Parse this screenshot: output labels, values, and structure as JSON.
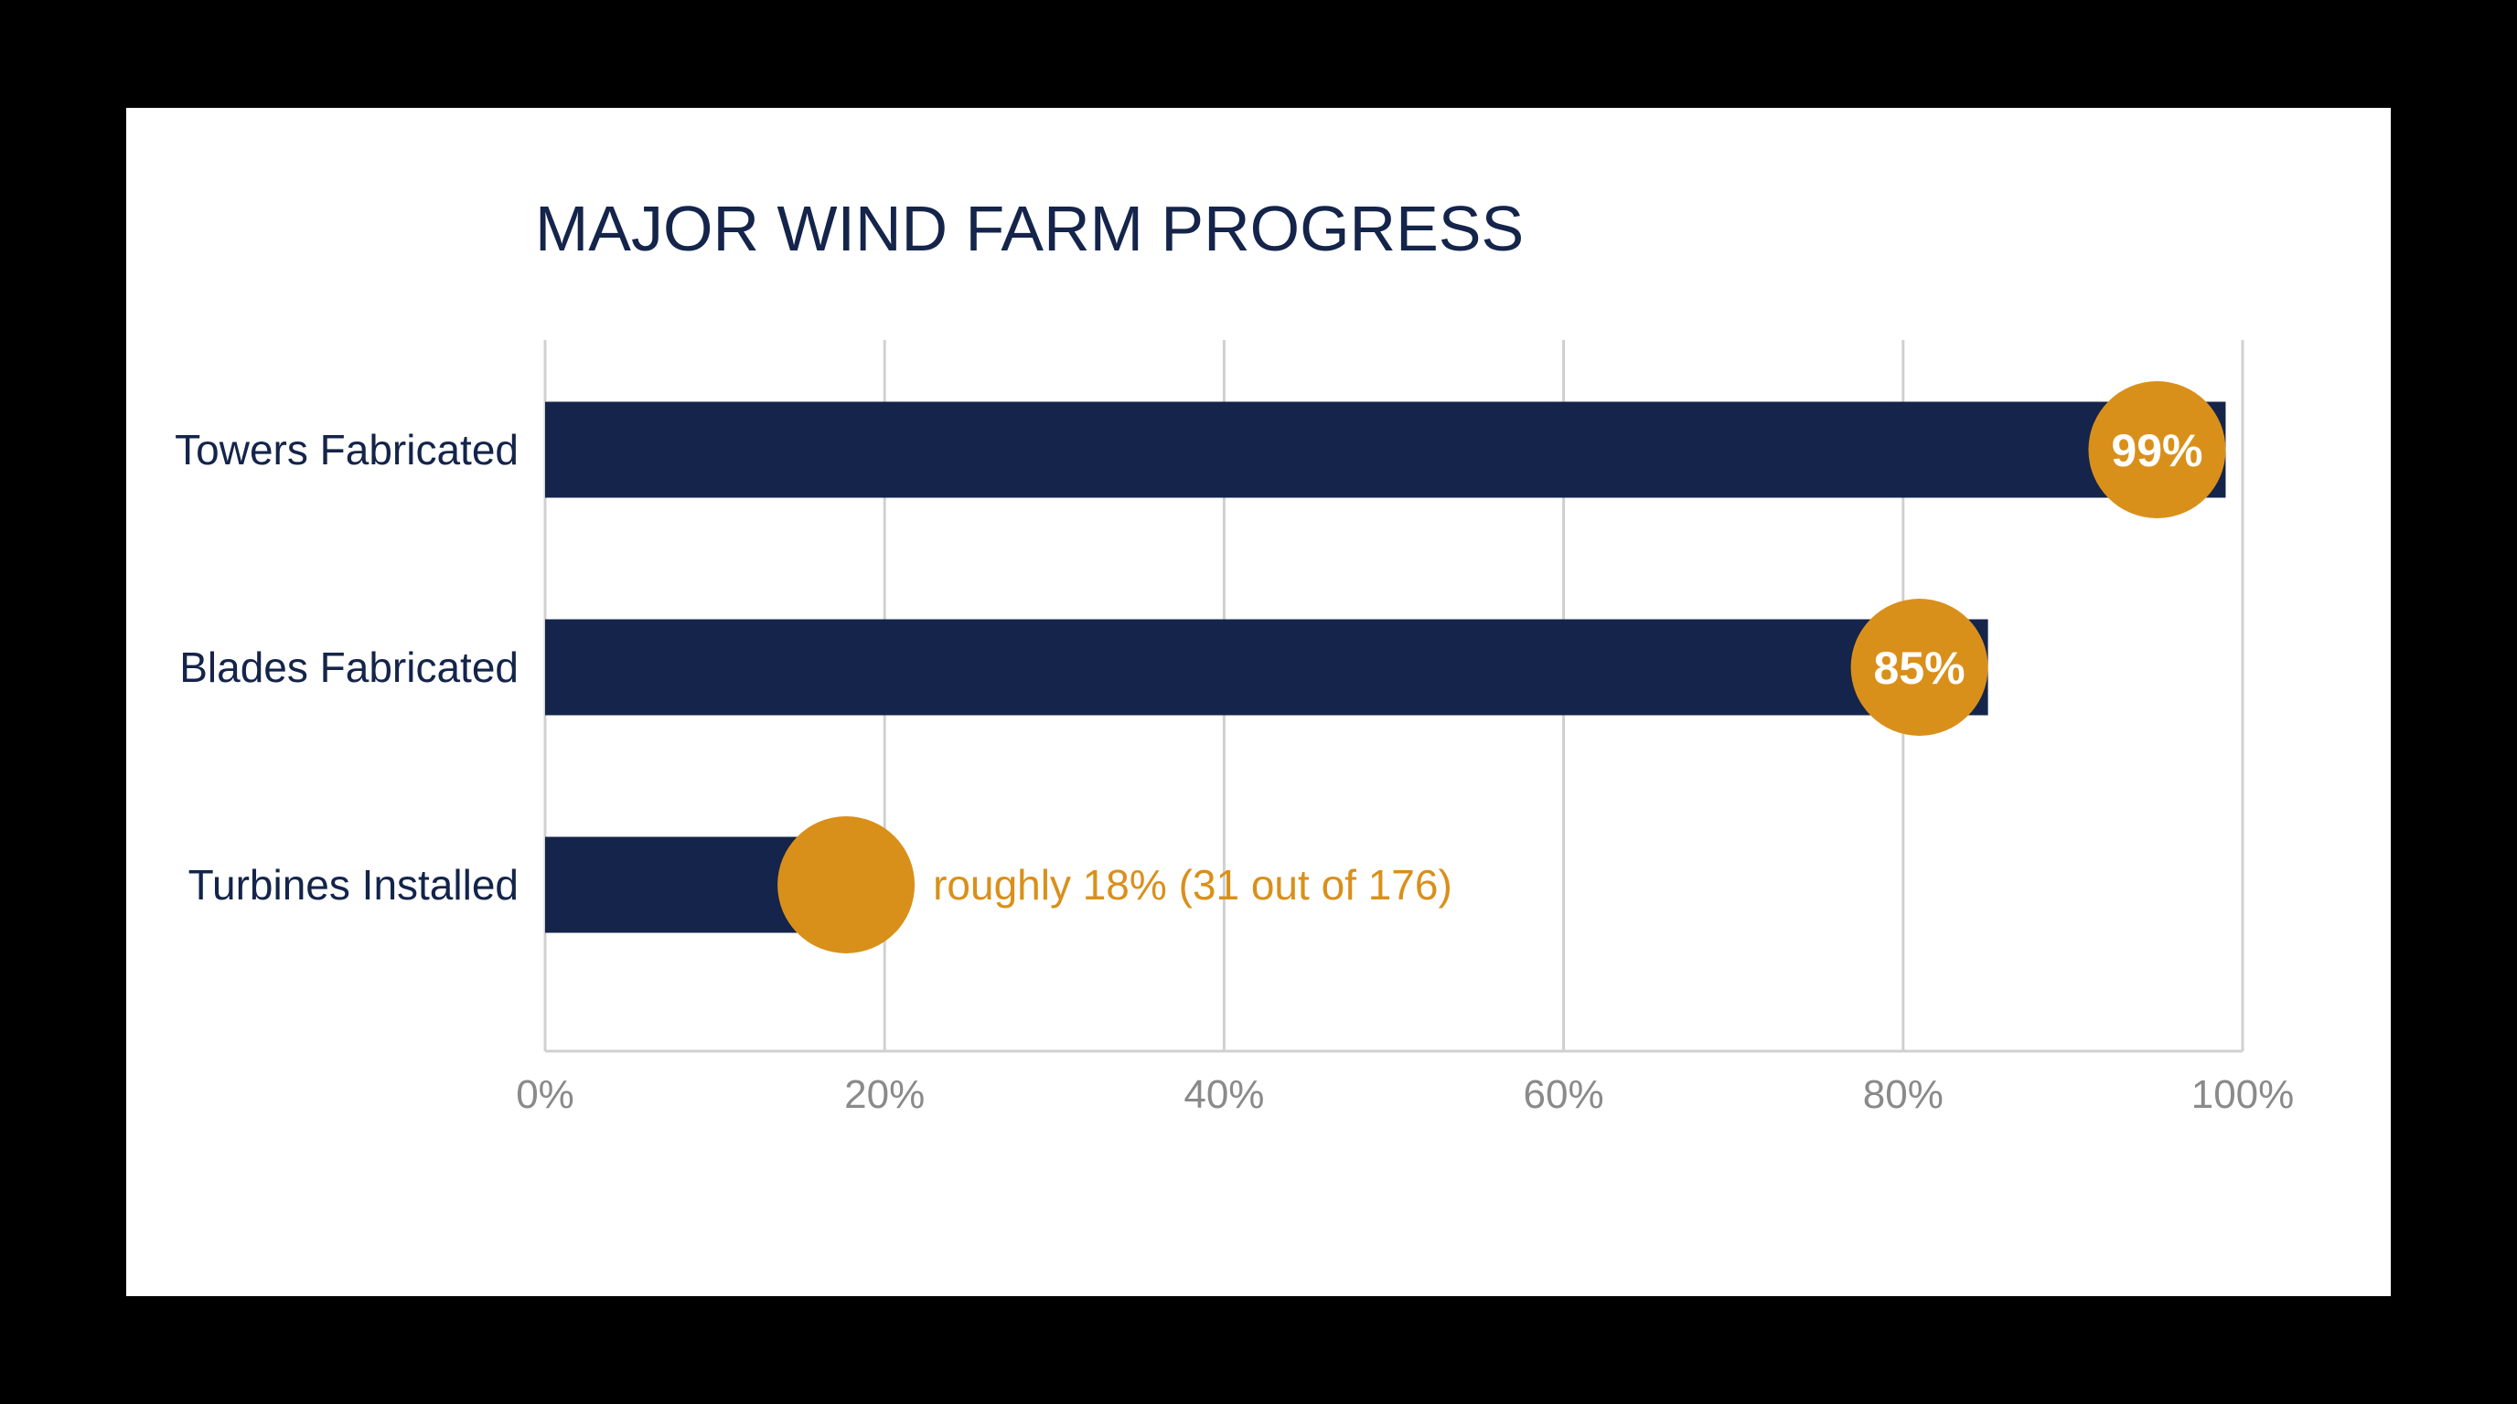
{
  "colors": {
    "background": "#000000",
    "card": "#ffffff",
    "bar": "#14244a",
    "marker": "#d9901a",
    "grid": "#d0d0d0",
    "tick_text": "#8a8a8a",
    "label_text": "#14244a"
  },
  "chart_data": {
    "type": "bar",
    "orientation": "horizontal",
    "title": "MAJOR WIND FARM PROGRESS",
    "categories": [
      "Towers Fabricated",
      "Blades Fabricated",
      "Turbines Installed"
    ],
    "values": [
      99,
      85,
      18
    ],
    "data_labels": [
      "99%",
      "85%",
      "roughly 18% (31 out of 176)"
    ],
    "xlim": [
      0,
      100
    ],
    "x_ticks": [
      0,
      20,
      40,
      60,
      80,
      100
    ],
    "x_tick_labels": [
      "0%",
      "20%",
      "40%",
      "60%",
      "80%",
      "100%"
    ],
    "grid": true,
    "legend": "none",
    "xlabel": "",
    "ylabel": ""
  }
}
